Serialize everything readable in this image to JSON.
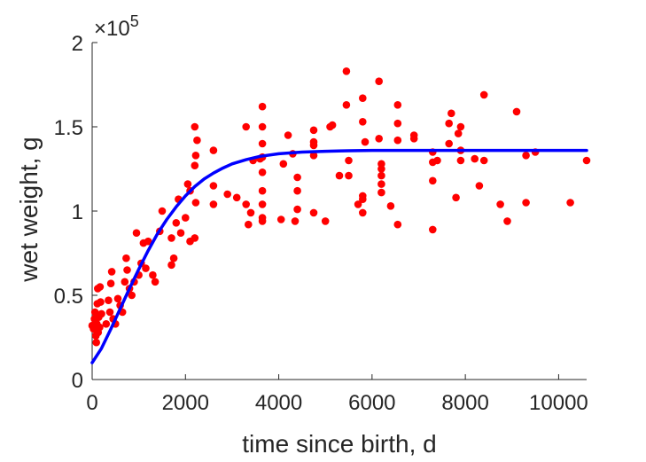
{
  "chart_data": {
    "type": "scatter",
    "title": "",
    "xlabel": "time since birth, d",
    "ylabel": "wet weight, g",
    "xlim": [
      0,
      10600
    ],
    "ylim": [
      0,
      200000
    ],
    "x_ticks": [
      0,
      2000,
      4000,
      6000,
      8000,
      10000
    ],
    "y_ticks": [
      0,
      50000,
      100000,
      150000,
      200000
    ],
    "y_tick_labels": [
      "0",
      "0.5",
      "1",
      "1.5",
      "2"
    ],
    "y_exponent": {
      "prefix": "×10",
      "power": "5"
    },
    "grid": false,
    "legend": "none",
    "colors": {
      "points": "#ff0000",
      "fit": "#0000ff",
      "axes": "#262626"
    },
    "series": [
      {
        "kind": "points",
        "points": [
          [
            0,
            32000
          ],
          [
            30,
            30000
          ],
          [
            50,
            36000
          ],
          [
            60,
            40000
          ],
          [
            80,
            26000
          ],
          [
            90,
            22000
          ],
          [
            100,
            33000
          ],
          [
            110,
            45000
          ],
          [
            120,
            54000
          ],
          [
            130,
            28000
          ],
          [
            140,
            37000
          ],
          [
            160,
            31000
          ],
          [
            170,
            55000
          ],
          [
            180,
            46000
          ],
          [
            200,
            39000
          ],
          [
            300,
            33000
          ],
          [
            350,
            47000
          ],
          [
            380,
            40000
          ],
          [
            400,
            57000
          ],
          [
            420,
            64000
          ],
          [
            450,
            36000
          ],
          [
            500,
            33000
          ],
          [
            550,
            48000
          ],
          [
            600,
            44000
          ],
          [
            650,
            40000
          ],
          [
            700,
            58000
          ],
          [
            730,
            72000
          ],
          [
            750,
            65000
          ],
          [
            800,
            54000
          ],
          [
            850,
            50000
          ],
          [
            900,
            58000
          ],
          [
            950,
            87000
          ],
          [
            1000,
            62000
          ],
          [
            1050,
            69000
          ],
          [
            1100,
            81000
          ],
          [
            1150,
            66000
          ],
          [
            1200,
            82000
          ],
          [
            1300,
            62000
          ],
          [
            1350,
            58000
          ],
          [
            1450,
            88000
          ],
          [
            1500,
            100000
          ],
          [
            1700,
            84000
          ],
          [
            1700,
            68000
          ],
          [
            1750,
            72000
          ],
          [
            1800,
            93000
          ],
          [
            1850,
            107000
          ],
          [
            1900,
            87000
          ],
          [
            2000,
            96000
          ],
          [
            2050,
            116000
          ],
          [
            2100,
            82000
          ],
          [
            2100,
            112000
          ],
          [
            2200,
            84000
          ],
          [
            2200,
            150000
          ],
          [
            2220,
            105000
          ],
          [
            2200,
            127000
          ],
          [
            2220,
            133000
          ],
          [
            2250,
            142000
          ],
          [
            2600,
            136000
          ],
          [
            2600,
            115000
          ],
          [
            2600,
            104000
          ],
          [
            2900,
            110000
          ],
          [
            3100,
            108000
          ],
          [
            3300,
            150000
          ],
          [
            3300,
            104000
          ],
          [
            3350,
            92000
          ],
          [
            3400,
            99000
          ],
          [
            3450,
            130000
          ],
          [
            3600,
            131000
          ],
          [
            3650,
            162000
          ],
          [
            3650,
            150000
          ],
          [
            3650,
            140000
          ],
          [
            3650,
            132000
          ],
          [
            3650,
            123000
          ],
          [
            3650,
            112000
          ],
          [
            3650,
            104000
          ],
          [
            3650,
            96000
          ],
          [
            3650,
            94000
          ],
          [
            4050,
            95000
          ],
          [
            4100,
            128000
          ],
          [
            4200,
            145000
          ],
          [
            4300,
            134000
          ],
          [
            4350,
            94000
          ],
          [
            4400,
            120000
          ],
          [
            4400,
            112000
          ],
          [
            4400,
            101000
          ],
          [
            4750,
            148000
          ],
          [
            4750,
            141000
          ],
          [
            4750,
            139000
          ],
          [
            4750,
            133000
          ],
          [
            4750,
            99000
          ],
          [
            5000,
            94000
          ],
          [
            5100,
            150000
          ],
          [
            5150,
            151000
          ],
          [
            5300,
            121000
          ],
          [
            5450,
            183000
          ],
          [
            5450,
            163000
          ],
          [
            5500,
            130000
          ],
          [
            5500,
            121000
          ],
          [
            5700,
            104000
          ],
          [
            5800,
            153000
          ],
          [
            5800,
            109000
          ],
          [
            5800,
            107000
          ],
          [
            5800,
            99000
          ],
          [
            5800,
            167000
          ],
          [
            5850,
            141000
          ],
          [
            6150,
            177000
          ],
          [
            6150,
            143000
          ],
          [
            6200,
            128000
          ],
          [
            6200,
            125000
          ],
          [
            6200,
            121000
          ],
          [
            6200,
            116000
          ],
          [
            6200,
            111000
          ],
          [
            6400,
            103000
          ],
          [
            6550,
            163000
          ],
          [
            6550,
            152000
          ],
          [
            6550,
            142000
          ],
          [
            6550,
            92000
          ],
          [
            6900,
            145000
          ],
          [
            6900,
            143000
          ],
          [
            7300,
            135000
          ],
          [
            7300,
            129000
          ],
          [
            7300,
            118000
          ],
          [
            7300,
            89000
          ],
          [
            7400,
            130000
          ],
          [
            7650,
            152000
          ],
          [
            7650,
            140000
          ],
          [
            7700,
            158000
          ],
          [
            7800,
            108000
          ],
          [
            7850,
            146000
          ],
          [
            7900,
            150000
          ],
          [
            7900,
            136000
          ],
          [
            7900,
            130000
          ],
          [
            8200,
            131000
          ],
          [
            8300,
            115000
          ],
          [
            8400,
            169000
          ],
          [
            8400,
            130000
          ],
          [
            8750,
            104000
          ],
          [
            8900,
            94000
          ],
          [
            9100,
            159000
          ],
          [
            9300,
            133000
          ],
          [
            9300,
            105000
          ],
          [
            9500,
            135000
          ],
          [
            10250,
            105000
          ],
          [
            10600,
            130000
          ]
        ]
      },
      {
        "kind": "fit-curve",
        "x": [
          0,
          200,
          400,
          600,
          800,
          1000,
          1200,
          1400,
          1600,
          1800,
          2000,
          2200,
          2400,
          2600,
          2800,
          3000,
          3300,
          3600,
          4000,
          4500,
          5000,
          5500,
          6000,
          6500,
          7000,
          8000,
          9000,
          10000,
          10600
        ],
        "y": [
          10000,
          18500,
          30000,
          42000,
          54000,
          65500,
          76500,
          86500,
          95000,
          102500,
          109000,
          114500,
          119000,
          122500,
          125500,
          128000,
          130500,
          132500,
          134000,
          135000,
          135500,
          135800,
          136000,
          136000,
          136000,
          136000,
          136000,
          136000,
          136000
        ]
      }
    ]
  }
}
